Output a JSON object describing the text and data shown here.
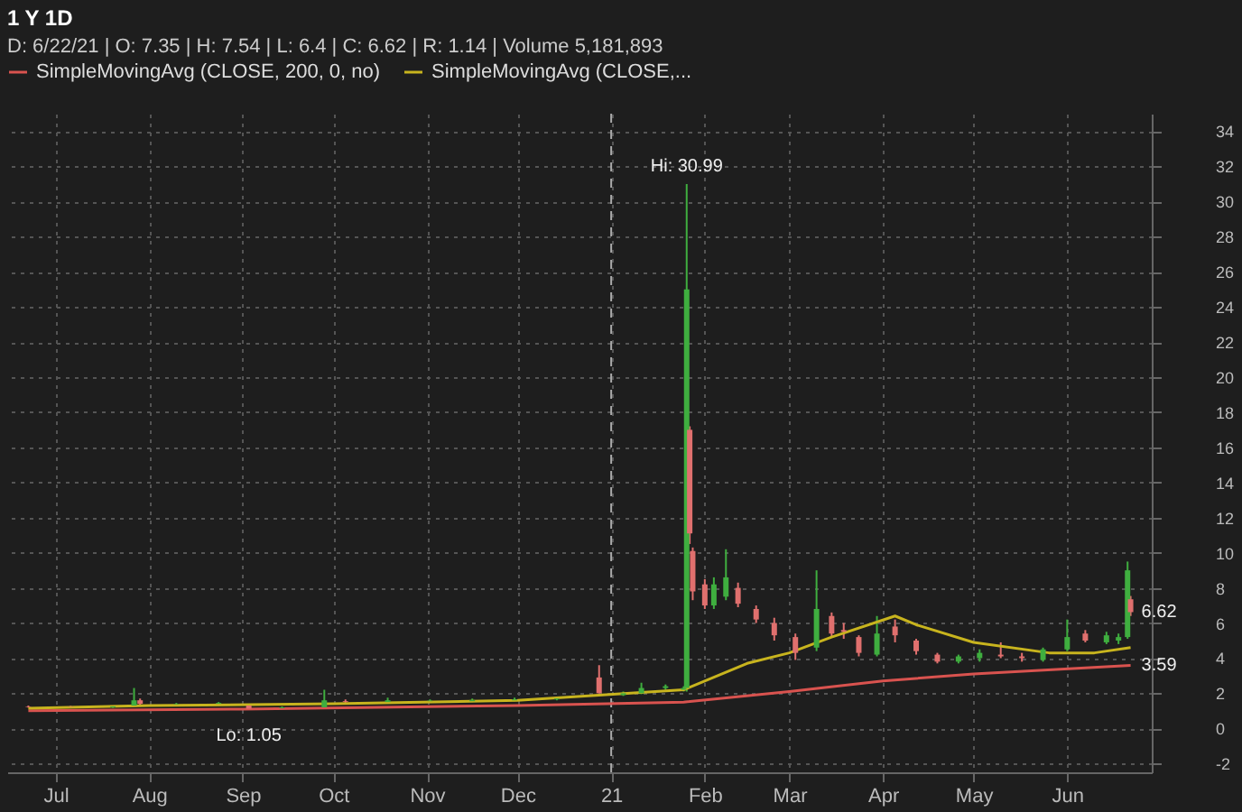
{
  "chart_data": {
    "type": "candlestick",
    "title": "1 Y 1D",
    "subtitle": "D: 6/22/21 | O: 7.35 | H: 7.54 | L: 6.4 | C: 6.62 | R: 1.14 | Volume 5,181,893",
    "x": [
      "2020-06-22",
      "2020-07-06",
      "2020-07-20",
      "2020-07-27",
      "2020-07-29",
      "2020-08-10",
      "2020-08-24",
      "2020-09-03",
      "2020-09-14",
      "2020-09-28",
      "2020-10-05",
      "2020-10-19",
      "2020-11-02",
      "2020-11-16",
      "2020-11-30",
      "2020-12-14",
      "2020-12-28",
      "2021-01-05",
      "2021-01-11",
      "2021-01-19",
      "2021-01-25",
      "2021-01-26",
      "2021-01-27",
      "2021-01-28",
      "2021-02-01",
      "2021-02-04",
      "2021-02-08",
      "2021-02-12",
      "2021-02-18",
      "2021-02-24",
      "2021-03-03",
      "2021-03-10",
      "2021-03-15",
      "2021-03-19",
      "2021-03-24",
      "2021-03-30",
      "2021-04-05",
      "2021-04-12",
      "2021-04-19",
      "2021-04-26",
      "2021-05-03",
      "2021-05-10",
      "2021-05-17",
      "2021-05-24",
      "2021-06-01",
      "2021-06-07",
      "2021-06-14",
      "2021-06-18",
      "2021-06-21",
      "2021-06-22"
    ],
    "ohlc": [
      [
        1.25,
        1.3,
        1.18,
        1.22
      ],
      [
        1.22,
        1.28,
        1.18,
        1.2
      ],
      [
        1.2,
        1.3,
        1.17,
        1.25
      ],
      [
        1.3,
        2.3,
        1.28,
        1.6
      ],
      [
        1.6,
        1.7,
        1.35,
        1.4
      ],
      [
        1.35,
        1.45,
        1.3,
        1.38
      ],
      [
        1.4,
        1.5,
        1.35,
        1.45
      ],
      [
        1.3,
        1.32,
        1.05,
        1.12
      ],
      [
        1.15,
        1.25,
        1.1,
        1.2
      ],
      [
        1.2,
        2.2,
        1.18,
        1.6
      ],
      [
        1.55,
        1.65,
        1.45,
        1.5
      ],
      [
        1.5,
        1.75,
        1.45,
        1.6
      ],
      [
        1.55,
        1.65,
        1.5,
        1.58
      ],
      [
        1.55,
        1.7,
        1.5,
        1.62
      ],
      [
        1.6,
        1.75,
        1.55,
        1.65
      ],
      [
        1.65,
        1.8,
        1.6,
        1.7
      ],
      [
        2.9,
        3.6,
        2.0,
        2.0
      ],
      [
        1.9,
        2.1,
        1.85,
        2.0
      ],
      [
        2.0,
        2.6,
        1.95,
        2.3
      ],
      [
        2.3,
        2.5,
        2.2,
        2.4
      ],
      [
        2.2,
        2.4,
        2.1,
        2.3
      ],
      [
        2.3,
        30.99,
        2.1,
        25
      ],
      [
        17,
        17.2,
        10.5,
        11.1
      ],
      [
        10.1,
        10.3,
        7.3,
        7.8
      ],
      [
        8.2,
        8.5,
        6.8,
        7.0
      ],
      [
        7.0,
        8.6,
        6.8,
        8.2
      ],
      [
        7.5,
        10.2,
        7.3,
        8.6
      ],
      [
        8,
        8.3,
        6.9,
        7.1
      ],
      [
        6.8,
        7.0,
        6.0,
        6.2
      ],
      [
        6.0,
        6.3,
        5.0,
        5.3
      ],
      [
        5.2,
        5.4,
        3.9,
        4.3
      ],
      [
        4.6,
        9.0,
        4.4,
        6.8
      ],
      [
        6.4,
        6.6,
        5.2,
        5.4
      ],
      [
        5.6,
        6.0,
        5.1,
        5.5
      ],
      [
        5.2,
        5.3,
        4.1,
        4.3
      ],
      [
        4.2,
        6.4,
        4.1,
        5.4
      ],
      [
        5.8,
        6.2,
        4.9,
        5.3
      ],
      [
        5.0,
        5.1,
        4.2,
        4.4
      ],
      [
        4.2,
        4.3,
        3.7,
        3.8
      ],
      [
        3.8,
        4.2,
        3.7,
        4.1
      ],
      [
        4.0,
        4.5,
        3.8,
        4.3
      ],
      [
        4.2,
        4.9,
        4.0,
        4.1
      ],
      [
        4.1,
        4.3,
        3.8,
        4.0
      ],
      [
        3.9,
        4.6,
        3.8,
        4.5
      ],
      [
        4.5,
        6.2,
        4.4,
        5.2
      ],
      [
        5.4,
        5.6,
        4.9,
        5.0
      ],
      [
        4.9,
        5.5,
        4.8,
        5.3
      ],
      [
        5.0,
        5.4,
        4.8,
        5.2
      ],
      [
        5.2,
        9.5,
        5.1,
        9.0
      ],
      [
        7.35,
        7.54,
        6.4,
        6.62
      ]
    ],
    "series": [
      {
        "name": "SimpleMovingAvg (CLOSE, 200, 0, no)",
        "type": "line",
        "color": "#d9534f",
        "x": [
          "2020-06-22",
          "2020-09-01",
          "2020-12-01",
          "2021-01-25",
          "2021-03-01",
          "2021-04-01",
          "2021-05-01",
          "2021-06-22"
        ],
        "values": [
          1.0,
          1.1,
          1.3,
          1.5,
          2.1,
          2.7,
          3.1,
          3.59
        ]
      },
      {
        "name": "SimpleMovingAvg (CLOSE,...",
        "type": "line",
        "color": "#c8b41e",
        "x": [
          "2020-06-22",
          "2020-08-01",
          "2020-10-01",
          "2020-12-01",
          "2021-01-25",
          "2021-02-15",
          "2021-03-01",
          "2021-03-15",
          "2021-04-05",
          "2021-04-12",
          "2021-05-01",
          "2021-05-26",
          "2021-06-10",
          "2021-06-22"
        ],
        "values": [
          1.15,
          1.3,
          1.4,
          1.6,
          2.2,
          3.7,
          4.3,
          5.2,
          6.4,
          5.9,
          4.9,
          4.3,
          4.3,
          4.6
        ]
      }
    ],
    "xlim": [
      "2020-06-15",
      "2021-06-29"
    ],
    "xticks": [
      {
        "value": "2020-07-01",
        "label": "Jul"
      },
      {
        "value": "2020-08-01",
        "label": "Aug"
      },
      {
        "value": "2020-09-01",
        "label": "Sep"
      },
      {
        "value": "2020-10-01",
        "label": "Oct"
      },
      {
        "value": "2020-11-01",
        "label": "Nov"
      },
      {
        "value": "2020-12-01",
        "label": "Dec"
      },
      {
        "value": "2021-01-01",
        "label": "21"
      },
      {
        "value": "2021-02-01",
        "label": "Feb"
      },
      {
        "value": "2021-03-01",
        "label": "Mar"
      },
      {
        "value": "2021-04-01",
        "label": "Apr"
      },
      {
        "value": "2021-05-01",
        "label": "May"
      },
      {
        "value": "2021-06-01",
        "label": "Jun"
      }
    ],
    "ylim": [
      -2.5,
      35
    ],
    "yticks": [
      -2,
      0,
      2,
      4,
      6,
      8,
      10,
      12,
      14,
      16,
      18,
      20,
      22,
      24,
      26,
      28,
      30,
      32,
      34
    ],
    "grid": true,
    "legend": "top",
    "ref_lines": [
      {
        "axis": "x",
        "value": "2021-01-01",
        "line_style": "dashed"
      }
    ],
    "annotations": [
      {
        "text": "Hi: 30.99",
        "x": "2021-01-26",
        "y": 30.99
      },
      {
        "text": "Lo: 1.05",
        "x": "2020-09-03",
        "y": 1.05
      },
      {
        "text": "6.62",
        "x": "2021-06-22",
        "y": 6.62
      },
      {
        "text": "3.59",
        "x": "2021-06-22",
        "y": 3.59
      }
    ]
  }
}
